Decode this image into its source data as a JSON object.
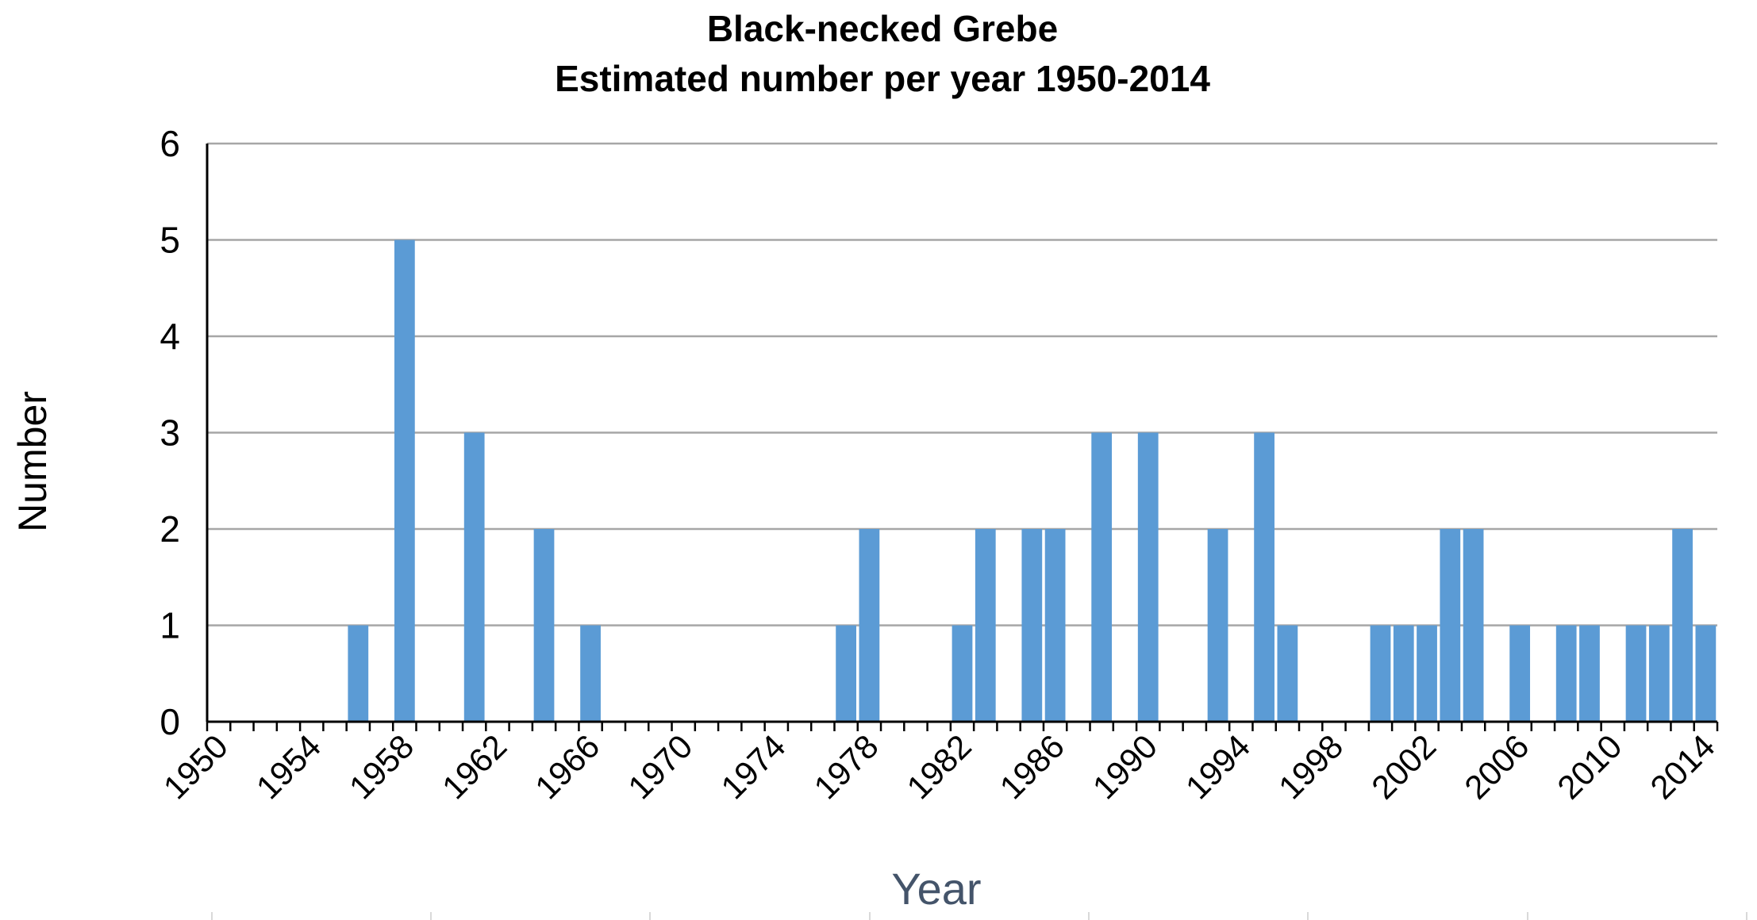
{
  "chart_data": {
    "type": "bar",
    "title": "Black-necked Grebe",
    "subtitle": "Estimated number per year 1950-2014",
    "xlabel": "Year",
    "ylabel": "Number",
    "ylim": [
      0,
      6
    ],
    "yticks": [
      "0",
      "1",
      "2",
      "3",
      "4",
      "5",
      "6"
    ],
    "grid": true,
    "bar_color": "#5b9bd5",
    "categories": [
      1950,
      1951,
      1952,
      1953,
      1954,
      1955,
      1956,
      1957,
      1958,
      1959,
      1960,
      1961,
      1962,
      1963,
      1964,
      1965,
      1966,
      1967,
      1968,
      1969,
      1970,
      1971,
      1972,
      1973,
      1974,
      1975,
      1976,
      1977,
      1978,
      1979,
      1980,
      1981,
      1982,
      1983,
      1984,
      1985,
      1986,
      1987,
      1988,
      1989,
      1990,
      1991,
      1992,
      1993,
      1994,
      1995,
      1996,
      1997,
      1998,
      1999,
      2000,
      2001,
      2002,
      2003,
      2004,
      2005,
      2006,
      2007,
      2008,
      2009,
      2010,
      2011,
      2012,
      2013,
      2014
    ],
    "values": [
      0,
      0,
      0,
      0,
      0,
      0,
      1,
      0,
      5,
      0,
      0,
      3,
      0,
      0,
      2,
      0,
      1,
      0,
      0,
      0,
      0,
      0,
      0,
      0,
      0,
      0,
      0,
      1,
      2,
      0,
      0,
      0,
      1,
      2,
      0,
      2,
      2,
      0,
      3,
      0,
      3,
      0,
      0,
      2,
      0,
      3,
      1,
      0,
      0,
      0,
      1,
      1,
      1,
      2,
      2,
      0,
      1,
      0,
      1,
      1,
      0,
      1,
      1,
      2,
      1
    ],
    "xtick_labels": [
      "1950",
      "1954",
      "1958",
      "1962",
      "1966",
      "1970",
      "1974",
      "1978",
      "1982",
      "1986",
      "1990",
      "1994",
      "1998",
      "2002",
      "2006",
      "2010",
      "2014"
    ]
  }
}
